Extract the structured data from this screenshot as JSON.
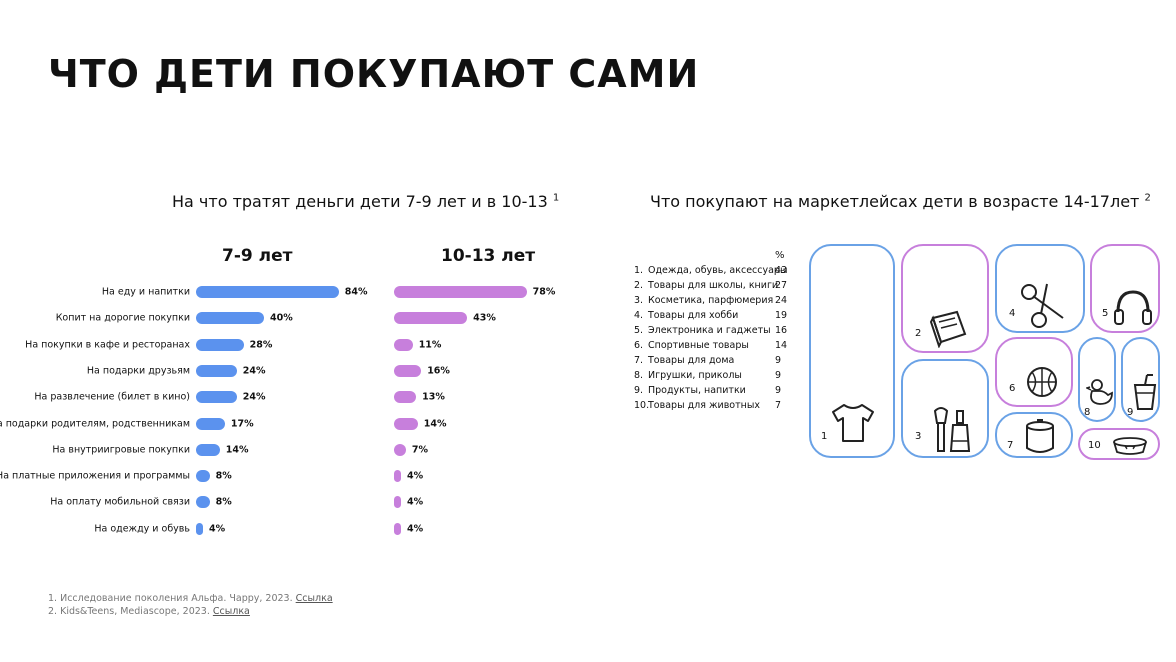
{
  "title": "ЧТО ДЕТИ ПОКУПАЮТ САМИ",
  "left_chart_title": "На что тратят деньги дети 7-9 лет и в 10-13",
  "left_chart_ref": "1",
  "right_title": "Что покупают на маркетлейсах дети в возрасте 14-17лет",
  "right_title_ref": "2",
  "colors": {
    "group1": "#5b92ee",
    "group2": "#c77fdc"
  },
  "chart_data": {
    "type": "bar",
    "orientation": "horizontal",
    "categories": [
      "На еду и напитки",
      "Копит на дорогие покупки",
      "На покупки в кафе и ресторанах",
      "На подарки друзьям",
      "На развлечение (билет в кино)",
      "На подарки родителям, родственникам",
      "На внутриигровые покупки",
      "На платные приложения и программы",
      "На оплату мобильной связи",
      "На одежду и обувь"
    ],
    "series": [
      {
        "name": "7-9 лет",
        "values": [
          84,
          40,
          28,
          24,
          24,
          17,
          14,
          8,
          8,
          4
        ],
        "labels": [
          "84%",
          "40%",
          "28%",
          "24%",
          "24%",
          "17%",
          "14%",
          "8%",
          "8%",
          "4%"
        ]
      },
      {
        "name": "10-13 лет",
        "values": [
          78,
          43,
          11,
          16,
          13,
          14,
          7,
          4,
          4,
          4
        ],
        "labels": [
          "78%",
          "43%",
          "11%",
          "16%",
          "13%",
          "14%",
          "7%",
          "4%",
          "4%",
          "4%"
        ]
      }
    ],
    "unit": "%"
  },
  "marketplace_list": {
    "header": "%",
    "items": [
      {
        "num": "1.",
        "label": "Одежда, обувь, аксессуары",
        "value": "43"
      },
      {
        "num": "2.",
        "label": "Товары для школы, книги",
        "value": "27"
      },
      {
        "num": "3.",
        "label": "Косметика, парфюмерия",
        "value": "24"
      },
      {
        "num": "4.",
        "label": "Товары для хобби",
        "value": "19"
      },
      {
        "num": "5.",
        "label": "Электроника и гаджеты",
        "value": "16"
      },
      {
        "num": "6.",
        "label": "Спортивные товары",
        "value": "14"
      },
      {
        "num": "7.",
        "label": "Товары для дома",
        "value": "9"
      },
      {
        "num": "8.",
        "label": "Игрушки, приколы",
        "value": "9"
      },
      {
        "num": "9.",
        "label": "Продукты, напитки",
        "value": "9"
      },
      {
        "num": "10.",
        "label": "Товары для животных",
        "value": "7"
      }
    ]
  },
  "tiles": [
    {
      "num": "1",
      "icon": "tshirt-icon"
    },
    {
      "num": "2",
      "icon": "book-icon"
    },
    {
      "num": "3",
      "icon": "cosmetics-icon"
    },
    {
      "num": "4",
      "icon": "scissors-icon"
    },
    {
      "num": "5",
      "icon": "headphones-icon"
    },
    {
      "num": "6",
      "icon": "ball-icon"
    },
    {
      "num": "7",
      "icon": "pot-icon"
    },
    {
      "num": "8",
      "icon": "duck-icon"
    },
    {
      "num": "9",
      "icon": "drink-icon"
    },
    {
      "num": "10",
      "icon": "pet-bowl-icon"
    }
  ],
  "footnotes": [
    {
      "text": "1.  Исследование поколения Альфа. Чарру, 2023.",
      "link": "Ссылка"
    },
    {
      "text": "2.  Kids&Teens, Mediascope, 2023.",
      "link": "Ссылка"
    }
  ]
}
